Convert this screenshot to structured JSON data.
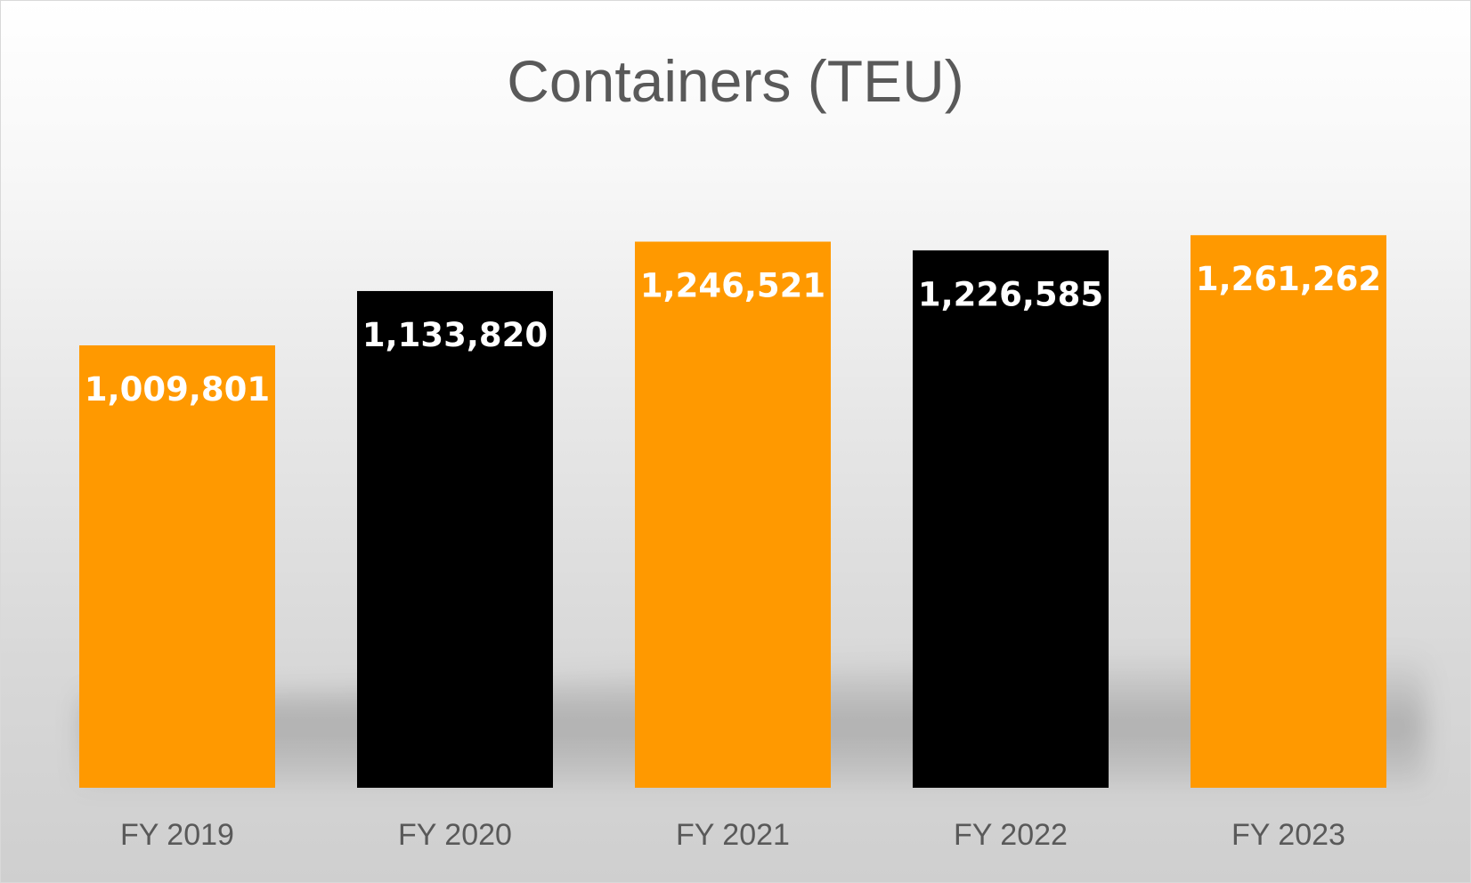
{
  "chart_data": {
    "type": "bar",
    "title": "Containers (TEU)",
    "categories": [
      "FY 2019",
      "FY 2020",
      "FY 2021",
      "FY 2022",
      "FY 2023"
    ],
    "values": [
      1009801,
      1133820,
      1246521,
      1226585,
      1261262
    ],
    "data_labels": [
      "1,009,801",
      "1,133,820",
      "1,246,521",
      "1,226,585",
      "1,261,262"
    ],
    "bar_colors": [
      "#FF9900",
      "#000000",
      "#FF9900",
      "#000000",
      "#FF9900"
    ],
    "xlabel": "",
    "ylabel": "",
    "ylim": [
      0,
      1400000
    ],
    "grid": false,
    "legend": "none"
  }
}
